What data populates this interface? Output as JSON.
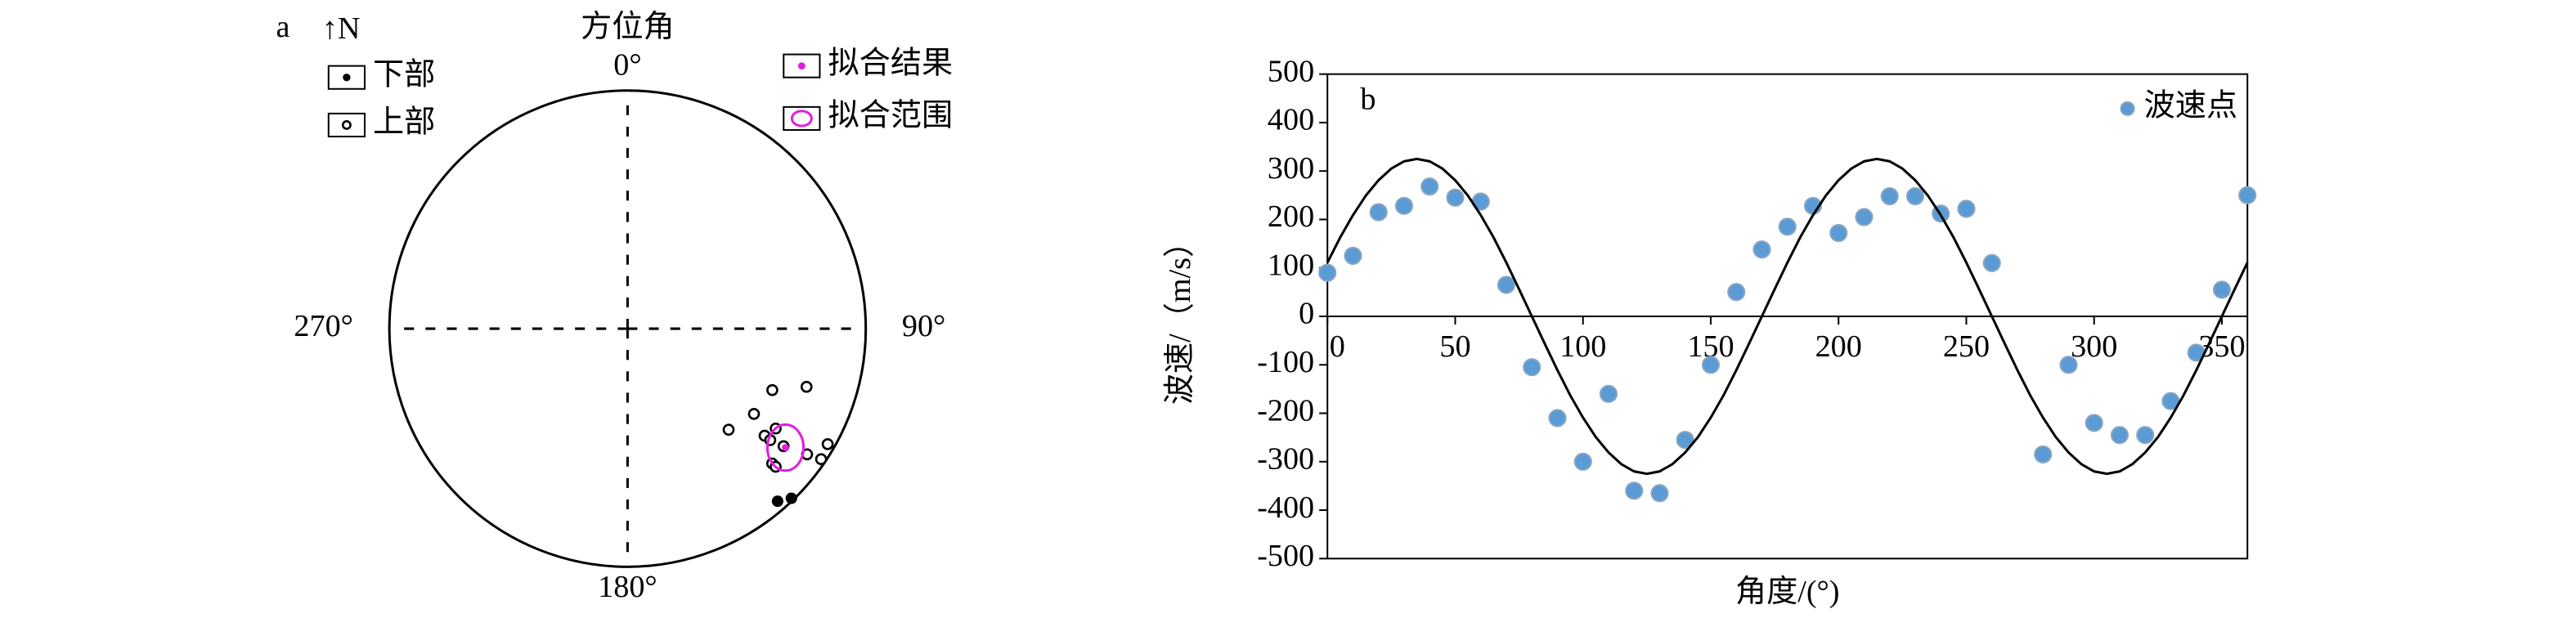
{
  "chart_data": [
    {
      "type": "stereonet",
      "panel_label": "a",
      "north": "↑N",
      "title": "方位角",
      "ticks": [
        {
          "value": 0,
          "label": "0°"
        },
        {
          "value": 90,
          "label": "90°"
        },
        {
          "value": 180,
          "label": "180°"
        },
        {
          "value": 270,
          "label": "270°"
        }
      ],
      "series": [
        {
          "name": "下部",
          "color": "#000000",
          "marker": "filled",
          "azimuth": [
            139,
            136
          ],
          "radius": [
            0.96,
            0.99
          ]
        },
        {
          "name": "上部",
          "color": "#000000",
          "marker": "open",
          "azimuth": [
            108,
            113,
            124,
            135,
            124,
            128,
            128,
            127,
            133,
            133,
            125,
            120,
            124
          ],
          "radius": [
            0.79,
            0.66,
            0.64,
            0.6,
            0.75,
            0.73,
            0.76,
            0.82,
            0.83,
            0.85,
            0.92,
            0.97,
            0.98
          ]
        },
        {
          "name": "拟合结果",
          "color": "#e020e0",
          "marker": "dot",
          "azimuth": [
            127
          ],
          "radius": [
            0.83
          ]
        },
        {
          "name": "拟合范围",
          "color": "#e020e0",
          "marker": "ellipse",
          "azimuth": [
            127
          ],
          "radius": [
            0.83
          ]
        }
      ]
    },
    {
      "type": "scatter",
      "panel_label": "b",
      "x_label": "角度/(°)",
      "y_label": "波速/（m/s）",
      "xlim": [
        0,
        360
      ],
      "ylim": [
        -500,
        500
      ],
      "xticks": [
        0,
        50,
        100,
        150,
        200,
        250,
        300,
        350
      ],
      "yticks": [
        -500,
        -400,
        -300,
        -200,
        -100,
        0,
        100,
        200,
        300,
        400,
        500
      ],
      "series": [
        {
          "name": "波速点",
          "style": "scatter",
          "color": "#5b9bd5",
          "x": [
            0,
            10,
            20,
            30,
            40,
            50,
            60,
            70,
            80,
            90,
            100,
            110,
            120,
            130,
            140,
            150,
            160,
            170,
            180,
            190,
            200,
            210,
            220,
            230,
            240,
            250,
            260,
            280,
            290,
            300,
            310,
            320,
            330,
            340,
            350,
            360
          ],
          "values": [
            90,
            125,
            215,
            228,
            268,
            245,
            237,
            65,
            -105,
            -210,
            -300,
            -160,
            -360,
            -365,
            -255,
            -100,
            50,
            138,
            185,
            228,
            172,
            205,
            248,
            248,
            212,
            222,
            110,
            -285,
            -100,
            -220,
            -245,
            -245,
            -175,
            -75,
            55,
            250
          ]
        },
        {
          "style": "line",
          "color": "#000000",
          "x": [
            0,
            5,
            10,
            15,
            20,
            25,
            30,
            35,
            40,
            45,
            50,
            55,
            60,
            65,
            70,
            75,
            80,
            85,
            90,
            95,
            100,
            105,
            110,
            115,
            120,
            125,
            130,
            135,
            140,
            145,
            150,
            155,
            160,
            165,
            170,
            175,
            180,
            185,
            190,
            195,
            200,
            205,
            210,
            215,
            220,
            225,
            230,
            235,
            240,
            245,
            250,
            255,
            260,
            265,
            270,
            275,
            280,
            285,
            290,
            295,
            300,
            305,
            310,
            315,
            320,
            325,
            330,
            335,
            340,
            345,
            350,
            355,
            360
          ],
          "values": [
            111,
            163,
            209,
            249,
            281,
            305,
            320,
            325,
            320,
            305,
            281,
            249,
            209,
            163,
            111,
            56,
            0,
            -56,
            -111,
            -163,
            -209,
            -249,
            -281,
            -305,
            -320,
            -325,
            -320,
            -305,
            -281,
            -249,
            -209,
            -163,
            -111,
            -56,
            0,
            56,
            111,
            163,
            209,
            249,
            281,
            305,
            320,
            325,
            320,
            305,
            281,
            249,
            209,
            163,
            111,
            56,
            0,
            -56,
            -111,
            -163,
            -209,
            -249,
            -281,
            -305,
            -320,
            -325,
            -320,
            -305,
            -281,
            -249,
            -209,
            -163,
            -111,
            -56,
            0,
            56,
            111
          ]
        }
      ]
    }
  ]
}
